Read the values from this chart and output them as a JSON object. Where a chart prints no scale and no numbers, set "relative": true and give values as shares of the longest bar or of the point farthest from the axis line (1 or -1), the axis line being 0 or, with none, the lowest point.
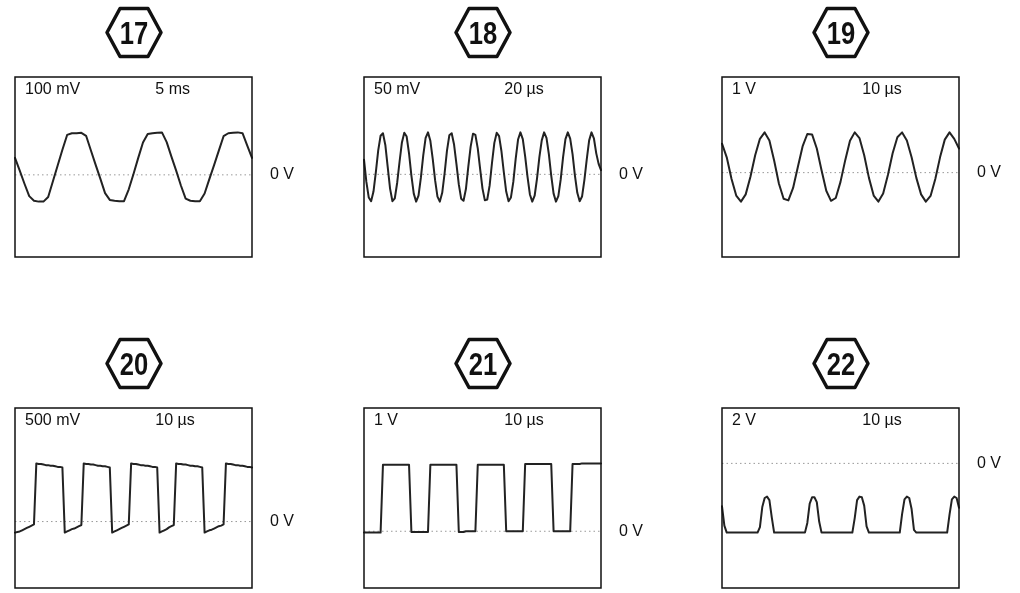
{
  "chart_data": [
    {
      "type": "line",
      "title": "17",
      "annotations": [
        "100 mV",
        "5 ms"
      ],
      "relative": true,
      "color": "#222222",
      "ref_lines": [
        {
          "axis": "y",
          "value": 0,
          "label": "0 V",
          "color": "#999999",
          "line_style": "dotted"
        }
      ],
      "categories": [
        null,
        null,
        null,
        null,
        null,
        null,
        null,
        null,
        null,
        null,
        null,
        null,
        null,
        null,
        null,
        null,
        null,
        null,
        null,
        null,
        null,
        null,
        null,
        null,
        null,
        null,
        null,
        null,
        null,
        null,
        null,
        null,
        null,
        null,
        null,
        null,
        null,
        null,
        null,
        null,
        null,
        null,
        null,
        null,
        null,
        null,
        null,
        null,
        null,
        null,
        null
      ],
      "values": [
        0.4,
        0.1,
        -0.21,
        -0.5,
        -0.61,
        -0.63,
        -0.63,
        -0.52,
        -0.15,
        0.22,
        0.59,
        0.94,
        0.98,
        0.98,
        0.99,
        0.92,
        0.58,
        0.24,
        -0.09,
        -0.43,
        -0.59,
        -0.61,
        -0.62,
        -0.62,
        -0.34,
        0.02,
        0.4,
        0.76,
        0.96,
        0.98,
        0.99,
        1.0,
        0.77,
        0.43,
        0.1,
        -0.25,
        -0.56,
        -0.61,
        -0.62,
        -0.62,
        -0.44,
        -0.1,
        0.23,
        0.57,
        0.91,
        0.98,
        0.99,
        1.0,
        0.98,
        0.69,
        0.4
      ]
    },
    {
      "type": "line",
      "title": "18",
      "annotations": [
        "50 mV",
        "20 µs"
      ],
      "relative": true,
      "color": "#222222",
      "ref_lines": [
        {
          "axis": "y",
          "value": 0,
          "label": "0 V",
          "color": "#999999",
          "line_style": "dotted"
        }
      ],
      "categories": [
        null,
        null,
        null,
        null,
        null,
        null,
        null,
        null,
        null,
        null,
        null,
        null,
        null,
        null,
        null,
        null,
        null,
        null,
        null,
        null,
        null,
        null,
        null,
        null,
        null,
        null,
        null,
        null,
        null,
        null,
        null,
        null,
        null,
        null,
        null,
        null,
        null,
        null,
        null,
        null,
        null,
        null,
        null,
        null,
        null,
        null,
        null,
        null,
        null,
        null,
        null,
        null,
        null,
        null,
        null,
        null,
        null,
        null,
        null,
        null,
        null,
        null,
        null,
        null,
        null,
        null,
        null,
        null,
        null,
        null,
        null,
        null,
        null,
        null,
        null,
        null,
        null,
        null,
        null,
        null,
        null,
        null,
        null,
        null,
        null,
        null,
        null,
        null,
        null,
        null,
        null,
        null,
        null,
        null,
        null,
        null,
        null,
        null,
        null,
        null,
        null
      ],
      "values": [
        0.35,
        -0.18,
        -0.55,
        -0.64,
        -0.41,
        0.05,
        0.57,
        0.92,
        0.98,
        0.7,
        0.18,
        -0.34,
        -0.64,
        -0.57,
        -0.2,
        0.3,
        0.76,
        0.99,
        0.9,
        0.5,
        -0.03,
        -0.46,
        -0.65,
        -0.51,
        -0.08,
        0.45,
        0.87,
        1.0,
        0.8,
        0.37,
        -0.14,
        -0.53,
        -0.65,
        -0.44,
        0.02,
        0.56,
        0.93,
        0.98,
        0.71,
        0.25,
        -0.24,
        -0.58,
        -0.63,
        -0.35,
        0.18,
        0.66,
        0.97,
        0.94,
        0.62,
        0.13,
        -0.34,
        -0.62,
        -0.6,
        -0.27,
        0.27,
        0.75,
        0.99,
        0.91,
        0.55,
        0.05,
        -0.41,
        -0.64,
        -0.55,
        -0.18,
        0.37,
        0.83,
        1.0,
        0.84,
        0.43,
        -0.06,
        -0.48,
        -0.65,
        -0.51,
        -0.1,
        0.41,
        0.81,
        1.0,
        0.87,
        0.48,
        -0.03,
        -0.46,
        -0.65,
        -0.52,
        -0.12,
        0.41,
        0.84,
        1.0,
        0.85,
        0.48,
        -0.03,
        -0.44,
        -0.64,
        -0.53,
        -0.13,
        0.36,
        0.81,
        1.0,
        0.86,
        0.5,
        0.25,
        0.1
      ]
    },
    {
      "type": "line",
      "title": "19",
      "annotations": [
        "1 V",
        "10 µs"
      ],
      "relative": true,
      "color": "#222222",
      "ref_lines": [
        {
          "axis": "y",
          "value": 0,
          "label": "0 V",
          "color": "#999999",
          "line_style": "dotted"
        }
      ],
      "categories": [
        null,
        null,
        null,
        null,
        null,
        null,
        null,
        null,
        null,
        null,
        null,
        null,
        null,
        null,
        null,
        null,
        null,
        null,
        null,
        null,
        null,
        null,
        null,
        null,
        null,
        null,
        null,
        null,
        null,
        null,
        null,
        null,
        null,
        null,
        null,
        null,
        null,
        null,
        null,
        null,
        null,
        null,
        null,
        null,
        null,
        null,
        null,
        null,
        null,
        null,
        null
      ],
      "values": [
        0.72,
        0.38,
        -0.15,
        -0.57,
        -0.72,
        -0.54,
        -0.1,
        0.43,
        0.84,
        1.0,
        0.8,
        0.3,
        -0.27,
        -0.65,
        -0.69,
        -0.38,
        0.14,
        0.65,
        0.96,
        0.95,
        0.6,
        0.06,
        -0.45,
        -0.7,
        -0.63,
        -0.23,
        0.31,
        0.79,
        1.0,
        0.86,
        0.43,
        -0.13,
        -0.57,
        -0.72,
        -0.52,
        -0.06,
        0.48,
        0.88,
        1.0,
        0.8,
        0.38,
        -0.13,
        -0.54,
        -0.72,
        -0.58,
        -0.16,
        0.38,
        0.82,
        1.0,
        0.84,
        0.6
      ]
    },
    {
      "type": "line",
      "title": "20",
      "annotations": [
        "500 mV",
        "10 µs"
      ],
      "relative": true,
      "color": "#222222",
      "ref_lines": [
        {
          "axis": "y",
          "value": 0,
          "label": "0 V",
          "color": "#999999",
          "line_style": "dotted"
        }
      ],
      "categories": [
        null,
        null,
        null,
        null,
        null,
        null,
        null,
        null,
        null,
        null,
        null,
        null,
        null,
        null,
        null,
        null,
        null,
        null,
        null,
        null,
        null,
        null,
        null,
        null,
        null,
        null,
        null,
        null,
        null,
        null,
        null,
        null,
        null,
        null,
        null,
        null,
        null,
        null,
        null,
        null,
        null,
        null,
        null,
        null,
        null,
        null,
        null,
        null,
        null,
        null,
        null,
        null,
        null,
        null,
        null,
        null,
        null,
        null,
        null,
        null,
        null,
        null,
        null,
        null,
        null,
        null,
        null,
        null,
        null,
        null,
        null,
        null,
        null,
        null,
        null,
        null,
        null,
        null,
        null,
        null,
        null,
        null,
        null,
        null,
        null,
        null,
        null,
        null,
        null,
        null,
        null,
        null,
        null,
        null,
        null,
        null,
        null,
        null,
        null,
        null,
        null
      ],
      "values": [
        -0.19,
        -0.18,
        -0.17,
        -0.15,
        -0.13,
        -0.11,
        -0.09,
        -0.07,
        -0.05,
        1.0,
        0.99,
        0.99,
        0.98,
        0.97,
        0.97,
        0.96,
        0.96,
        0.95,
        0.94,
        0.94,
        0.93,
        -0.19,
        -0.17,
        -0.15,
        -0.13,
        -0.12,
        -0.1,
        -0.08,
        -0.06,
        1.0,
        0.99,
        0.99,
        0.98,
        0.98,
        0.97,
        0.96,
        0.96,
        0.95,
        0.95,
        0.94,
        0.93,
        -0.19,
        -0.17,
        -0.15,
        -0.13,
        -0.11,
        -0.09,
        -0.07,
        -0.05,
        1.0,
        0.99,
        0.99,
        0.98,
        0.97,
        0.97,
        0.96,
        0.96,
        0.95,
        0.94,
        0.94,
        0.93,
        -0.19,
        -0.17,
        -0.15,
        -0.13,
        -0.1,
        -0.08,
        -0.06,
        1.0,
        0.99,
        0.99,
        0.98,
        0.98,
        0.97,
        0.96,
        0.96,
        0.95,
        0.95,
        0.94,
        0.93,
        -0.19,
        -0.17,
        -0.15,
        -0.14,
        -0.12,
        -0.1,
        -0.08,
        -0.07,
        -0.05,
        1.0,
        0.99,
        0.99,
        0.98,
        0.97,
        0.97,
        0.96,
        0.96,
        0.95,
        0.94,
        0.94,
        0.93
      ]
    },
    {
      "type": "line",
      "title": "21",
      "annotations": [
        "1 V",
        "10 µs"
      ],
      "relative": true,
      "color": "#222222",
      "ref_lines": [
        {
          "axis": "y",
          "value": 0,
          "label": "0 V",
          "color": "#999999",
          "line_style": "dotted"
        }
      ],
      "categories": [
        null,
        null,
        null,
        null,
        null,
        null,
        null,
        null,
        null,
        null,
        null,
        null,
        null,
        null,
        null,
        null,
        null,
        null,
        null,
        null,
        null,
        null,
        null,
        null,
        null,
        null,
        null,
        null,
        null,
        null,
        null,
        null,
        null,
        null,
        null,
        null,
        null,
        null,
        null,
        null,
        null,
        null,
        null,
        null,
        null,
        null,
        null,
        null,
        null,
        null,
        null,
        null,
        null,
        null,
        null,
        null,
        null,
        null,
        null,
        null,
        null,
        null,
        null,
        null,
        null,
        null,
        null,
        null,
        null,
        null,
        null,
        null,
        null,
        null,
        null,
        null,
        null,
        null,
        null,
        null,
        null,
        null,
        null,
        null,
        null,
        null,
        null,
        null,
        null,
        null,
        null,
        null,
        null,
        null,
        null,
        null,
        null,
        null,
        null,
        null,
        null
      ],
      "values": [
        -0.02,
        -0.02,
        -0.02,
        -0.02,
        -0.02,
        -0.02,
        -0.02,
        -0.02,
        0.98,
        0.98,
        0.98,
        0.98,
        0.98,
        0.98,
        0.98,
        0.98,
        0.98,
        0.98,
        0.98,
        0.98,
        -0.01,
        -0.01,
        -0.01,
        -0.01,
        -0.01,
        -0.01,
        -0.01,
        -0.01,
        0.98,
        0.98,
        0.98,
        0.98,
        0.98,
        0.98,
        0.98,
        0.98,
        0.98,
        0.98,
        0.98,
        0.98,
        -0.01,
        -0.01,
        -0.01,
        0,
        0,
        0,
        0,
        0,
        0.98,
        0.98,
        0.98,
        0.98,
        0.98,
        0.98,
        0.98,
        0.98,
        0.98,
        0.98,
        0.98,
        0.98,
        0,
        0,
        0,
        0,
        0,
        0,
        0,
        0,
        0.99,
        0.99,
        0.99,
        0.99,
        0.99,
        0.99,
        0.99,
        0.99,
        0.99,
        0.99,
        0.99,
        0.99,
        0,
        0,
        0,
        0,
        0,
        0,
        0,
        0,
        0.99,
        0.99,
        0.99,
        0.99,
        1.0,
        1.0,
        1.0,
        1.0,
        1.0,
        1.0,
        1.0,
        1.0,
        1.0
      ]
    },
    {
      "type": "line",
      "title": "22",
      "annotations": [
        "2 V",
        "10 µs"
      ],
      "relative": true,
      "color": "#222222",
      "ref_lines": [
        {
          "axis": "y",
          "value": 0,
          "label": "0 V",
          "color": "#999999",
          "line_style": "dotted"
        }
      ],
      "categories": [
        null,
        null,
        null,
        null,
        null,
        null,
        null,
        null,
        null,
        null,
        null,
        null,
        null,
        null,
        null,
        null,
        null,
        null,
        null,
        null,
        null,
        null,
        null,
        null,
        null,
        null,
        null,
        null,
        null,
        null,
        null,
        null,
        null,
        null,
        null,
        null,
        null,
        null,
        null,
        null,
        null,
        null,
        null,
        null,
        null,
        null,
        null,
        null,
        null,
        null,
        null,
        null,
        null,
        null,
        null,
        null,
        null,
        null,
        null,
        null,
        null,
        null,
        null,
        null,
        null,
        null,
        null,
        null,
        null,
        null,
        null,
        null,
        null,
        null,
        null,
        null,
        null,
        null,
        null,
        null,
        null,
        null,
        null,
        null,
        null,
        null,
        null,
        null,
        null,
        null,
        null,
        null,
        null,
        null,
        null,
        null,
        null,
        null,
        null,
        null,
        null
      ],
      "values": [
        -0.62,
        -0.9,
        -1,
        -1,
        -1,
        -1,
        -1,
        -1,
        -1,
        -1,
        -1,
        -1,
        -1,
        -1,
        -1,
        -1,
        -0.92,
        -0.63,
        -0.5,
        -0.48,
        -0.53,
        -0.78,
        -1,
        -1,
        -1,
        -1,
        -1,
        -1,
        -1,
        -1,
        -1,
        -1,
        -1,
        -1,
        -1,
        -1,
        -0.86,
        -0.58,
        -0.49,
        -0.49,
        -0.56,
        -0.84,
        -1,
        -1,
        -1,
        -1,
        -1,
        -1,
        -1,
        -1,
        -1,
        -1,
        -1,
        -1,
        -1,
        -1,
        -0.79,
        -0.53,
        -0.48,
        -0.49,
        -0.61,
        -0.91,
        -1,
        -1,
        -1,
        -1,
        -1,
        -1,
        -1,
        -1,
        -1,
        -1,
        -1,
        -1,
        -1,
        -1,
        -0.73,
        -0.52,
        -0.48,
        -0.5,
        -0.66,
        -0.96,
        -1,
        -1,
        -1,
        -1,
        -1,
        -1,
        -1,
        -1,
        -1,
        -1,
        -1,
        -1,
        -1,
        -1,
        -0.74,
        -0.52,
        -0.48,
        -0.5,
        -0.64
      ]
    }
  ]
}
